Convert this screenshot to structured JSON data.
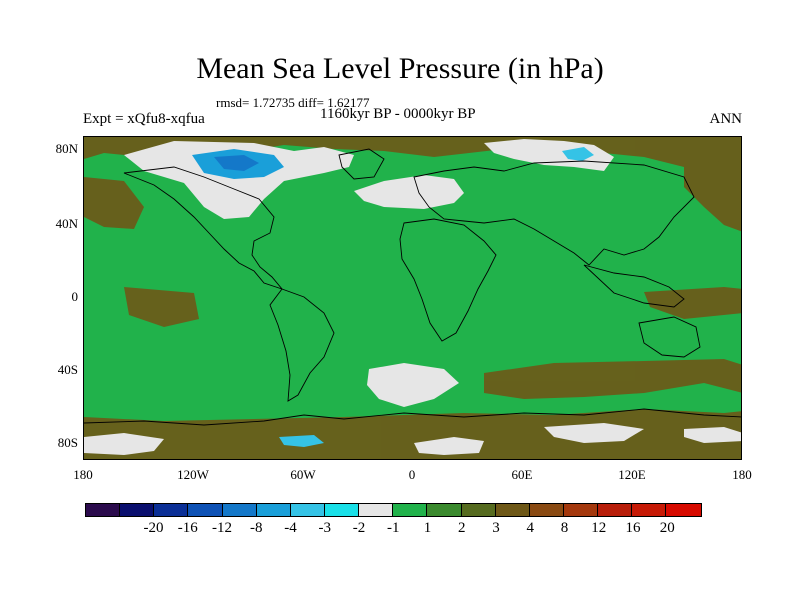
{
  "title": "Mean Sea Level Pressure (in hPa)",
  "stats": "rmsd= 1.72735 diff= 1.62177",
  "experiment": "Expt = xQfu8-xqfua",
  "period": "1160kyr BP - 0000kyr BP",
  "season": "ANN",
  "y_axis_labels": [
    "80N",
    "40N",
    "0",
    "40S",
    "80S"
  ],
  "x_axis_labels": [
    "180",
    "120W",
    "60W",
    "0",
    "60E",
    "120E",
    "180"
  ],
  "colorbar": {
    "colors": [
      "#2b0b4d",
      "#0a0f6e",
      "#0b2f96",
      "#0e52b5",
      "#1478c9",
      "#1a9fd9",
      "#35c3e6",
      "#1ae0e8",
      "#e6e6e6",
      "#21b24b",
      "#3b8a2e",
      "#566b1f",
      "#6e5817",
      "#8a4a12",
      "#a4380d",
      "#b81e0a",
      "#c71a06",
      "#d70a00"
    ],
    "labels": [
      "-20",
      "-16",
      "-12",
      "-8",
      "-4",
      "-3",
      "-2",
      "-1",
      "1",
      "2",
      "3",
      "4",
      "8",
      "12",
      "16",
      "20"
    ]
  }
}
